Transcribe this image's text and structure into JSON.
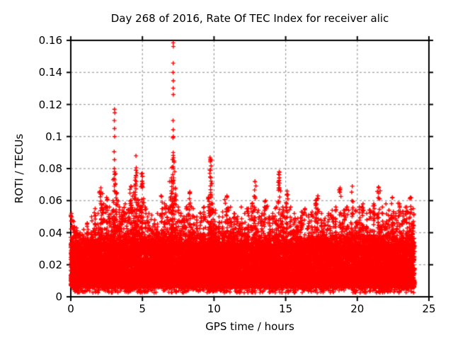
{
  "chart_data": {
    "type": "scatter",
    "title": "Day 268 of 2016, Rate Of TEC Index for receiver alic",
    "xlabel": "GPS time / hours",
    "ylabel": "ROTI / TECUs",
    "xlim": [
      0,
      25
    ],
    "ylim": [
      0,
      0.16
    ],
    "xtick_values": [
      0,
      5,
      10,
      15,
      20,
      25
    ],
    "xtick_labels": [
      "0",
      "5",
      "10",
      "15",
      "20",
      "25"
    ],
    "ytick_values": [
      0,
      0.02,
      0.04,
      0.06,
      0.08,
      0.1,
      0.12,
      0.14,
      0.16
    ],
    "ytick_labels": [
      "0",
      "0.02",
      "0.04",
      "0.06",
      "0.08",
      "0.1",
      "0.12",
      "0.14",
      "0.16"
    ],
    "style": {
      "background": "#ffffff",
      "text_color": "#000000",
      "axis_color": "#000000",
      "grid_color": "#9c9c9c",
      "grid_line": "dashed",
      "tick_direction": "out",
      "mirror_ticks": true,
      "marker_shape": "plus",
      "marker_color": "#ff0000",
      "marker_size_px": 7
    },
    "series_name": "ROTI",
    "data_hours_range": [
      0,
      24
    ],
    "baseline_band": {
      "description": "dense solid band of points across 0-24 h",
      "solid_low": 0.006,
      "solid_high": 0.03,
      "fuzzy_top_typical": 0.045,
      "sparse_min": 0.0025,
      "n_dense": 16000,
      "n_top_fuzz": 2500,
      "n_low_fuzz": 700,
      "seed": 268
    },
    "bursts_t_peak": [
      [
        0.05,
        0.052
      ],
      [
        0.2,
        0.047
      ],
      [
        0.4,
        0.043
      ],
      [
        0.65,
        0.04
      ],
      [
        0.9,
        0.042
      ],
      [
        1.15,
        0.046
      ],
      [
        1.45,
        0.05
      ],
      [
        1.7,
        0.055
      ],
      [
        1.9,
        0.052
      ],
      [
        2.1,
        0.068
      ],
      [
        2.3,
        0.058
      ],
      [
        2.5,
        0.062
      ],
      [
        2.7,
        0.056
      ],
      [
        2.95,
        0.06
      ],
      [
        3.05,
        0.078
      ],
      [
        3.2,
        0.065
      ],
      [
        3.4,
        0.056
      ],
      [
        3.6,
        0.054
      ],
      [
        3.8,
        0.058
      ],
      [
        4.0,
        0.054
      ],
      [
        4.2,
        0.069
      ],
      [
        4.4,
        0.065
      ],
      [
        4.55,
        0.079
      ],
      [
        4.7,
        0.06
      ],
      [
        4.85,
        0.056
      ],
      [
        5.0,
        0.077
      ],
      [
        5.2,
        0.056
      ],
      [
        5.45,
        0.052
      ],
      [
        5.65,
        0.051
      ],
      [
        5.85,
        0.048
      ],
      [
        6.05,
        0.052
      ],
      [
        6.3,
        0.063
      ],
      [
        6.55,
        0.058
      ],
      [
        6.8,
        0.055
      ],
      [
        7.0,
        0.072
      ],
      [
        7.15,
        0.09
      ],
      [
        7.3,
        0.068
      ],
      [
        7.5,
        0.056
      ],
      [
        7.7,
        0.052
      ],
      [
        7.9,
        0.05
      ],
      [
        8.1,
        0.056
      ],
      [
        8.3,
        0.065
      ],
      [
        8.55,
        0.055
      ],
      [
        8.8,
        0.05
      ],
      [
        9.05,
        0.052
      ],
      [
        9.3,
        0.056
      ],
      [
        9.6,
        0.062
      ],
      [
        9.75,
        0.086
      ],
      [
        9.9,
        0.058
      ],
      [
        10.1,
        0.054
      ],
      [
        10.35,
        0.05
      ],
      [
        10.6,
        0.053
      ],
      [
        10.9,
        0.063
      ],
      [
        11.15,
        0.056
      ],
      [
        11.4,
        0.052
      ],
      [
        11.65,
        0.05
      ],
      [
        11.9,
        0.056
      ],
      [
        12.15,
        0.052
      ],
      [
        12.4,
        0.055
      ],
      [
        12.65,
        0.058
      ],
      [
        12.85,
        0.072
      ],
      [
        13.1,
        0.054
      ],
      [
        13.35,
        0.052
      ],
      [
        13.6,
        0.06
      ],
      [
        13.85,
        0.05
      ],
      [
        14.1,
        0.052
      ],
      [
        14.35,
        0.056
      ],
      [
        14.55,
        0.078
      ],
      [
        14.8,
        0.056
      ],
      [
        15.1,
        0.066
      ],
      [
        15.35,
        0.056
      ],
      [
        15.6,
        0.052
      ],
      [
        15.85,
        0.049
      ],
      [
        16.1,
        0.053
      ],
      [
        16.35,
        0.055
      ],
      [
        16.6,
        0.051
      ],
      [
        16.85,
        0.053
      ],
      [
        17.1,
        0.06
      ],
      [
        17.25,
        0.063
      ],
      [
        17.5,
        0.052
      ],
      [
        17.75,
        0.049
      ],
      [
        18.0,
        0.052
      ],
      [
        18.25,
        0.054
      ],
      [
        18.5,
        0.056
      ],
      [
        18.8,
        0.068
      ],
      [
        19.05,
        0.054
      ],
      [
        19.3,
        0.056
      ],
      [
        19.65,
        0.069
      ],
      [
        19.9,
        0.054
      ],
      [
        20.15,
        0.056
      ],
      [
        20.4,
        0.058
      ],
      [
        20.65,
        0.052
      ],
      [
        20.9,
        0.054
      ],
      [
        21.15,
        0.058
      ],
      [
        21.5,
        0.068
      ],
      [
        21.75,
        0.056
      ],
      [
        22.0,
        0.058
      ],
      [
        22.2,
        0.054
      ],
      [
        22.45,
        0.062
      ],
      [
        22.7,
        0.052
      ],
      [
        22.95,
        0.058
      ],
      [
        23.2,
        0.053
      ],
      [
        23.45,
        0.056
      ],
      [
        23.7,
        0.062
      ],
      [
        23.9,
        0.055
      ]
    ],
    "outlier_points_t_y": [
      [
        3.05,
        0.117
      ],
      [
        3.07,
        0.1148
      ],
      [
        3.04,
        0.11
      ],
      [
        3.05,
        0.105
      ],
      [
        3.06,
        0.1
      ],
      [
        3.03,
        0.0905
      ],
      [
        3.05,
        0.0855
      ],
      [
        3.04,
        0.08
      ],
      [
        3.07,
        0.0763
      ],
      [
        3.02,
        0.0738
      ],
      [
        4.55,
        0.088
      ],
      [
        4.57,
        0.0805
      ],
      [
        4.52,
        0.0743
      ],
      [
        5.01,
        0.0752
      ],
      [
        4.99,
        0.0722
      ],
      [
        7.15,
        0.1585
      ],
      [
        7.16,
        0.1562
      ],
      [
        7.15,
        0.1458
      ],
      [
        7.14,
        0.14
      ],
      [
        7.16,
        0.1348
      ],
      [
        7.15,
        0.1302
      ],
      [
        7.16,
        0.1262
      ],
      [
        7.14,
        0.11
      ],
      [
        7.15,
        0.1042
      ],
      [
        7.16,
        0.1
      ],
      [
        7.13,
        0.0992
      ],
      [
        7.15,
        0.0882
      ],
      [
        7.17,
        0.0868
      ],
      [
        7.14,
        0.0812
      ],
      [
        7.17,
        0.0802
      ],
      [
        7.12,
        0.0763
      ],
      [
        7.18,
        0.0742
      ],
      [
        7.13,
        0.0722
      ],
      [
        9.72,
        0.087
      ],
      [
        9.75,
        0.0852
      ],
      [
        9.74,
        0.0843
      ],
      [
        9.76,
        0.079
      ],
      [
        9.73,
        0.0748
      ],
      [
        9.78,
        0.0722
      ],
      [
        12.86,
        0.0718
      ],
      [
        14.55,
        0.0762
      ],
      [
        14.56,
        0.0743
      ],
      [
        14.54,
        0.0726
      ],
      [
        14.57,
        0.071
      ]
    ]
  }
}
